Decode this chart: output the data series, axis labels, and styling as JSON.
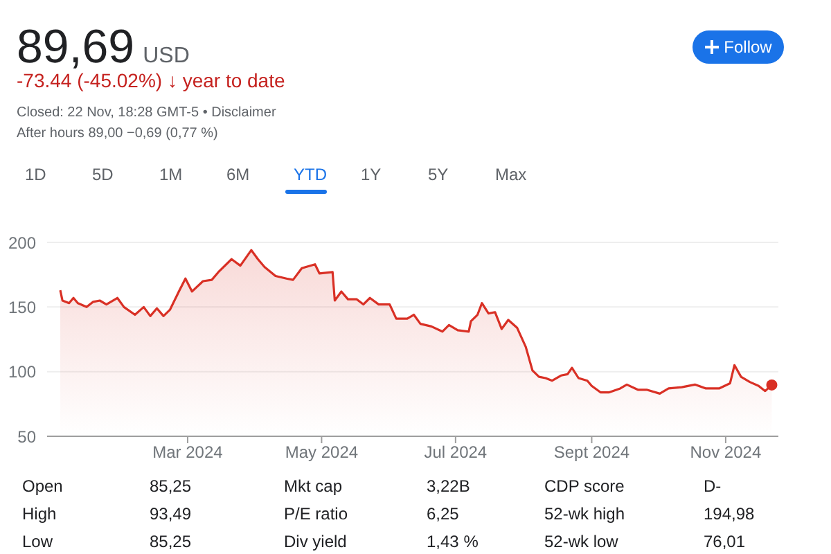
{
  "chart_data": {
    "type": "area",
    "title": "89,69 USD",
    "subtitle": "-73.44 (-45.02%) ↓ year to date",
    "annotations": [
      "Closed: 22 Nov, 18:28 GMT-5 • Disclaimer",
      "After hours 89,00 −0,69 (0,77 %)",
      "Follow",
      "1D",
      "5D",
      "1M",
      "6M",
      "YTD",
      "1Y",
      "5Y",
      "Max",
      "Open",
      "85,25",
      "Mkt cap",
      "3,22B",
      "CDP score",
      "D-",
      "High",
      "93,49",
      "P/E ratio",
      "6,25",
      "52-wk high",
      "194,98",
      "Low",
      "85,25",
      "Div yield",
      "1,43 %",
      "52-wk low",
      "76,01"
    ],
    "x": [
      "2024-01-03",
      "2024-01-04",
      "2024-01-07",
      "2024-01-09",
      "2024-01-11",
      "2024-01-15",
      "2024-01-18",
      "2024-01-21",
      "2024-01-24",
      "2024-01-29",
      "2024-02-01",
      "2024-02-06",
      "2024-02-10",
      "2024-02-13",
      "2024-02-16",
      "2024-02-19",
      "2024-02-22",
      "2024-02-26",
      "2024-02-29",
      "2024-03-03",
      "2024-03-08",
      "2024-03-12",
      "2024-03-15",
      "2024-03-21",
      "2024-03-25",
      "2024-03-30",
      "2024-04-02",
      "2024-04-05",
      "2024-04-10",
      "2024-04-15",
      "2024-04-18",
      "2024-04-22",
      "2024-04-28",
      "2024-04-30",
      "2024-05-06",
      "2024-05-07",
      "2024-05-10",
      "2024-05-13",
      "2024-05-17",
      "2024-05-20",
      "2024-05-23",
      "2024-05-27",
      "2024-06-01",
      "2024-06-04",
      "2024-06-09",
      "2024-06-12",
      "2024-06-15",
      "2024-06-20",
      "2024-06-25",
      "2024-06-28",
      "2024-07-02",
      "2024-07-07",
      "2024-07-08",
      "2024-07-11",
      "2024-07-13",
      "2024-07-16",
      "2024-07-19",
      "2024-07-22",
      "2024-07-25",
      "2024-07-29",
      "2024-08-02",
      "2024-08-05",
      "2024-08-08",
      "2024-08-11",
      "2024-08-14",
      "2024-08-18",
      "2024-08-21",
      "2024-08-23",
      "2024-08-26",
      "2024-08-30",
      "2024-09-01",
      "2024-09-05",
      "2024-09-09",
      "2024-09-14",
      "2024-09-17",
      "2024-09-22",
      "2024-09-26",
      "2024-10-02",
      "2024-10-06",
      "2024-10-12",
      "2024-10-18",
      "2024-10-23",
      "2024-10-29",
      "2024-11-03",
      "2024-11-05",
      "2024-11-08",
      "2024-11-12",
      "2024-11-16",
      "2024-11-19",
      "2024-11-22"
    ],
    "series": [
      {
        "color": "#d93025",
        "values": [
          163,
          155,
          153,
          157,
          153,
          150,
          154,
          155,
          152,
          157,
          150,
          144,
          150,
          143,
          149,
          143,
          148,
          162,
          172,
          162,
          170,
          171,
          177,
          187,
          182,
          194,
          187,
          181,
          174,
          172,
          171,
          180,
          183,
          176,
          177,
          155,
          162,
          156,
          156,
          152,
          157,
          152,
          152,
          141,
          141,
          144,
          137,
          135,
          131,
          136,
          132,
          131,
          139,
          144,
          153,
          145,
          146,
          133,
          140,
          134,
          119,
          101,
          96,
          95,
          93,
          97,
          98,
          103,
          95,
          93,
          89,
          84,
          84,
          87,
          90,
          86,
          86,
          83,
          87,
          88,
          90,
          87,
          87,
          91,
          105,
          96,
          92,
          89,
          85,
          89.69
        ]
      }
    ],
    "xlim": [
      "2023-12-28",
      "2024-11-25"
    ],
    "xticks": [
      {
        "value": "2024-03-01",
        "label": "Mar 2024"
      },
      {
        "value": "2024-05-01",
        "label": "May 2024"
      },
      {
        "value": "2024-07-01",
        "label": "Jul 2024"
      },
      {
        "value": "2024-09-01",
        "label": "Sept 2024"
      },
      {
        "value": "2024-11-01",
        "label": "Nov 2024"
      }
    ],
    "ylim": [
      50,
      200
    ],
    "yticks": [
      50,
      100,
      150,
      200
    ],
    "grid": "y",
    "legend": false,
    "marker": "none",
    "line_style": "solid"
  }
}
